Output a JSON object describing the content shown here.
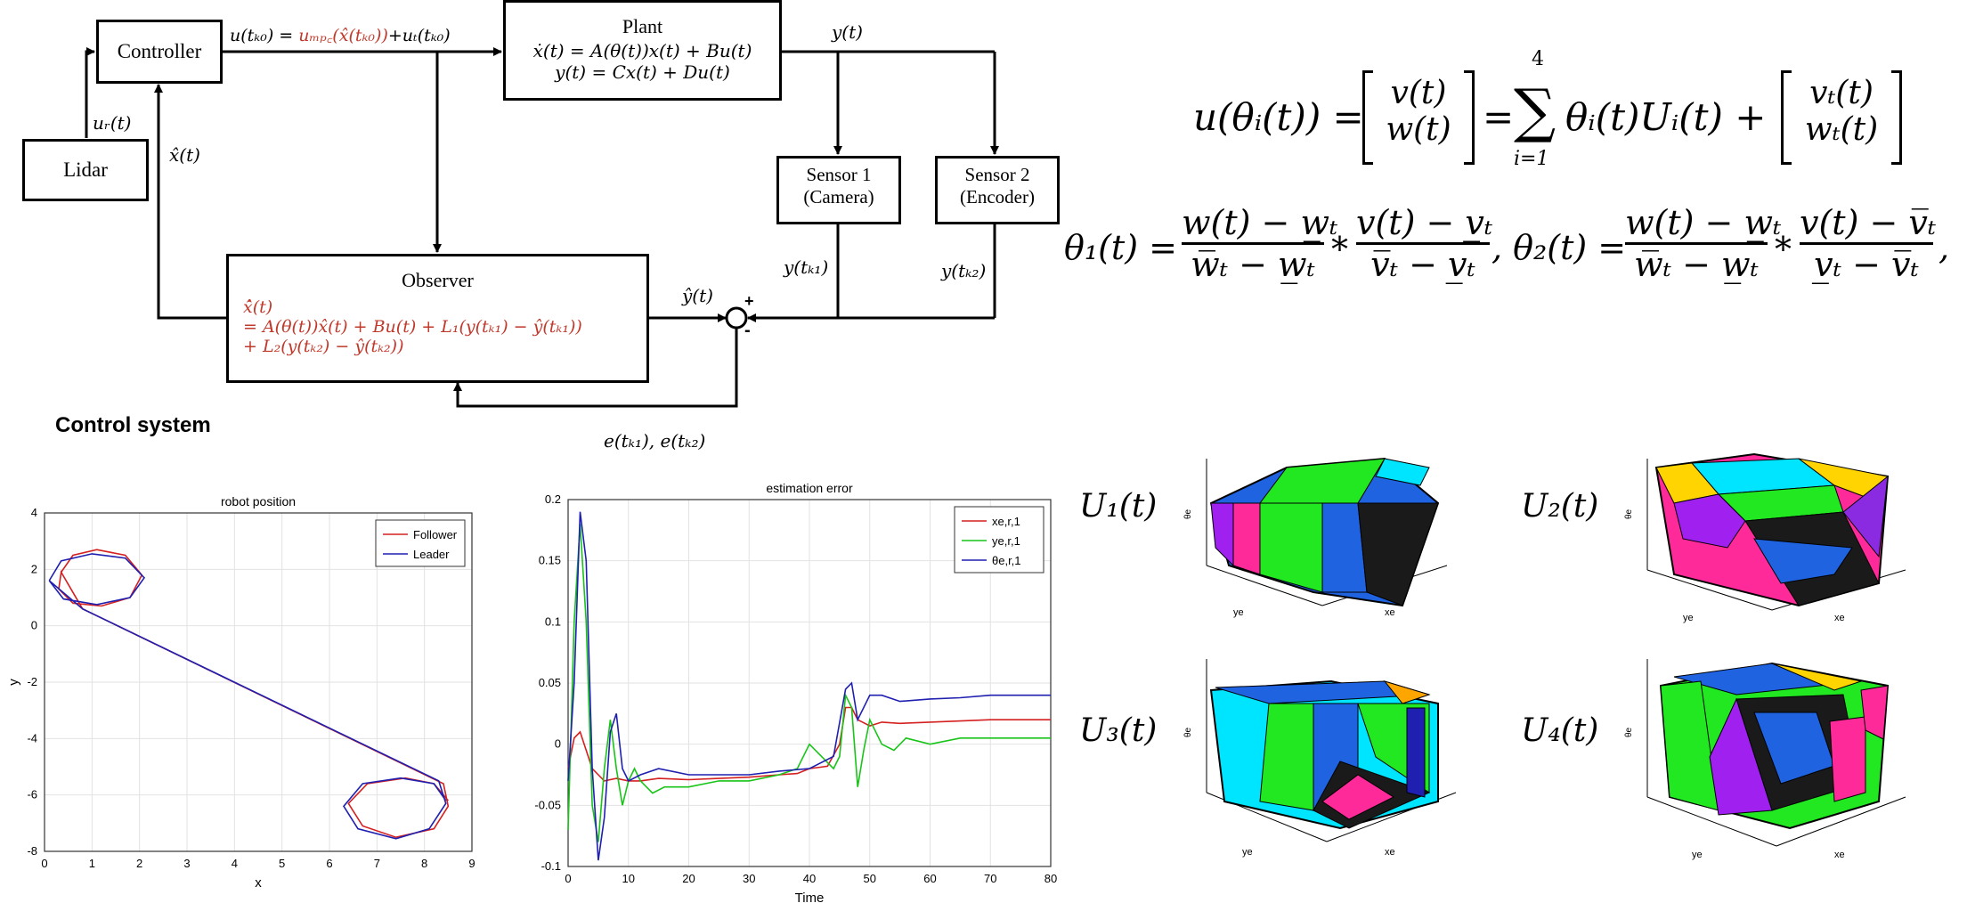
{
  "colors": {
    "red": "#d42020",
    "green": "#19c419",
    "blue": "#1f1fb0",
    "formula_red": "#c0392b"
  },
  "diagram": {
    "controller": "Controller",
    "lidar": "Lidar",
    "plant_title": "Plant",
    "plant_eq1": "ẋ(t) = A(θ(t))x(t) + Bu(t)",
    "plant_eq2": "y(t) = Cx(t) + Du(t)",
    "sensor1_l1": "Sensor 1",
    "sensor1_l2": "(Camera)",
    "sensor2_l1": "Sensor 2",
    "sensor2_l2": "(Encoder)",
    "observer_title": "Observer",
    "observer_eq1": "x̂̇(t)",
    "observer_eq2": "= A(θ(t))x̂(t) + Bu(t) + L₁(y(tₖ₁) − ŷ(tₖ₁))",
    "observer_eq3": "+ L₂(y(tₖ₂) − ŷ(tₖ₂))",
    "u_label_a": "u(tₖ₀) = ",
    "u_label_b": "uₘₚ꜀(x̂(tₖ₀))",
    "u_label_c": "+uₜ(tₖ₀)",
    "ur_label": "uᵣ(t)",
    "xhat_label": "x̂(t)",
    "y_label": "y(t)",
    "yhat_label": "ŷ(t)",
    "ytk1_label": "y(tₖ₁)",
    "ytk2_label": "y(tₖ₂)",
    "plus": "+",
    "minus": "-",
    "error_label": "e(tₖ₁), e(tₖ₂)",
    "caption": "Control system"
  },
  "equations": {
    "u_lhs": "u(θᵢ(t)) =",
    "v": "v(t)",
    "w": "w(t)",
    "eq": "=",
    "sum": "∑",
    "sum_top": "4",
    "sum_bottom": "i=1",
    "sum_body": "θᵢ(t)Uᵢ(t) +",
    "vt": "vₜ(t)",
    "wt": "wₜ(t)",
    "theta1_lhs": "θ₁(t) =",
    "t1_num1": "w(t) − w̲ₜ",
    "t1_den1": "w̅ₜ − w̲ₜ",
    "star": "*",
    "t1_num2": "v(t) − v̲ₜ",
    "t1_den2": "v̅ₜ − v̲ₜ",
    "theta2_lhs": ", θ₂(t) =",
    "t2_num1": "w(t) − w̲ₜ",
    "t2_den1": "w̅ₜ − w̲ₜ",
    "t2_num2": "v(t) − v̅ₜ",
    "t2_den2": "v̲ₜ − v̅ₜ",
    "comma": ","
  },
  "u_plots": {
    "labels": [
      "U₁(t)",
      "U₂(t)",
      "U₃(t)",
      "U₄(t)"
    ],
    "axis_xe": "xe",
    "axis_ye": "ye",
    "axis_the": "θe"
  },
  "chart_data": [
    {
      "type": "line",
      "title": "robot position",
      "xlabel": "x",
      "ylabel": "y",
      "xlim": [
        0,
        9
      ],
      "ylim": [
        -8,
        4
      ],
      "xticks": [
        0,
        1,
        2,
        3,
        4,
        5,
        6,
        7,
        8,
        9
      ],
      "yticks": [
        -8,
        -6,
        -4,
        -2,
        0,
        2,
        4
      ],
      "grid": true,
      "legend_position": "top-right",
      "series": [
        {
          "name": "Follower",
          "color": "#d42020",
          "description_points": [
            [
              0.35,
              1.9
            ],
            [
              0.6,
              2.5
            ],
            [
              1.1,
              2.7
            ],
            [
              1.7,
              2.5
            ],
            [
              2.05,
              1.8
            ],
            [
              1.8,
              1.0
            ],
            [
              1.2,
              0.7
            ],
            [
              0.6,
              0.8
            ],
            [
              0.3,
              1.3
            ],
            [
              0.35,
              1.9
            ],
            [
              0.8,
              0.6
            ],
            [
              8.4,
              -5.6
            ],
            [
              8.5,
              -6.4
            ],
            [
              8.2,
              -7.2
            ],
            [
              7.4,
              -7.5
            ],
            [
              6.7,
              -7.1
            ],
            [
              6.4,
              -6.3
            ],
            [
              6.8,
              -5.6
            ],
            [
              7.6,
              -5.4
            ],
            [
              8.2,
              -5.6
            ],
            [
              8.5,
              -6.2
            ]
          ]
        },
        {
          "name": "Leader",
          "color": "#1f1fb0",
          "description_points": [
            [
              0.1,
              1.6
            ],
            [
              0.35,
              2.3
            ],
            [
              1.0,
              2.55
            ],
            [
              1.7,
              2.4
            ],
            [
              2.1,
              1.7
            ],
            [
              1.8,
              1.0
            ],
            [
              1.1,
              0.75
            ],
            [
              0.4,
              0.95
            ],
            [
              0.1,
              1.6
            ],
            [
              0.8,
              0.6
            ],
            [
              8.3,
              -5.5
            ],
            [
              8.45,
              -6.3
            ],
            [
              8.1,
              -7.2
            ],
            [
              7.4,
              -7.55
            ],
            [
              6.6,
              -7.2
            ],
            [
              6.3,
              -6.4
            ],
            [
              6.7,
              -5.6
            ],
            [
              7.5,
              -5.4
            ],
            [
              8.2,
              -5.6
            ],
            [
              8.45,
              -6.2
            ]
          ]
        }
      ]
    },
    {
      "type": "line",
      "title": "estimation error",
      "xlabel": "Time",
      "ylabel": "",
      "xlim": [
        0,
        80
      ],
      "ylim": [
        -0.1,
        0.2
      ],
      "xticks": [
        0,
        10,
        20,
        30,
        40,
        50,
        60,
        70,
        80
      ],
      "yticks": [
        -0.1,
        -0.05,
        0,
        0.05,
        0.1,
        0.15,
        0.2
      ],
      "grid": true,
      "legend_position": "top-right",
      "series": [
        {
          "name": "xe,r,1",
          "color": "#d42020",
          "x": [
            0,
            1,
            2,
            3,
            4,
            5,
            6,
            8,
            10,
            12,
            15,
            20,
            25,
            30,
            35,
            38,
            40,
            43,
            45,
            46,
            47,
            48,
            50,
            52,
            55,
            60,
            65,
            70,
            75,
            80
          ],
          "y": [
            -0.02,
            0.005,
            0.01,
            -0.005,
            -0.02,
            -0.025,
            -0.03,
            -0.028,
            -0.03,
            -0.03,
            -0.028,
            -0.029,
            -0.028,
            -0.027,
            -0.025,
            -0.024,
            -0.02,
            -0.018,
            0,
            0.03,
            0.03,
            0.02,
            0.015,
            0.018,
            0.017,
            0.018,
            0.019,
            0.02,
            0.02,
            0.02
          ]
        },
        {
          "name": "ye,r,1",
          "color": "#19c419",
          "x": [
            0,
            1,
            2,
            3,
            4,
            5,
            6,
            7,
            8,
            9,
            10,
            11,
            12,
            14,
            16,
            20,
            25,
            30,
            35,
            38,
            40,
            42,
            44,
            45,
            46,
            47,
            48,
            49,
            50,
            52,
            54,
            56,
            60,
            65,
            70,
            75,
            80
          ],
          "y": [
            -0.07,
            0.1,
            0.18,
            0.1,
            -0.05,
            -0.08,
            -0.02,
            0.02,
            -0.02,
            -0.05,
            -0.03,
            -0.02,
            -0.03,
            -0.04,
            -0.035,
            -0.035,
            -0.03,
            -0.03,
            -0.025,
            -0.02,
            0.0,
            -0.01,
            -0.02,
            -0.01,
            0.04,
            0.03,
            -0.035,
            -0.005,
            0.02,
            0.0,
            -0.005,
            0.005,
            0.0,
            0.005,
            0.005,
            0.005,
            0.005
          ]
        },
        {
          "name": "θe,r,1",
          "color": "#1f1fb0",
          "x": [
            0,
            1,
            2,
            3,
            4,
            5,
            6,
            7,
            8,
            9,
            10,
            12,
            15,
            20,
            25,
            30,
            35,
            40,
            44,
            46,
            47,
            48,
            50,
            52,
            55,
            60,
            65,
            70,
            75,
            80
          ],
          "y": [
            -0.03,
            0.05,
            0.19,
            0.15,
            -0.02,
            -0.095,
            -0.06,
            0.01,
            0.025,
            -0.02,
            -0.03,
            -0.025,
            -0.02,
            -0.025,
            -0.025,
            -0.025,
            -0.022,
            -0.02,
            -0.01,
            0.045,
            0.05,
            0.02,
            0.04,
            0.04,
            0.035,
            0.037,
            0.038,
            0.04,
            0.04,
            0.04
          ]
        }
      ]
    }
  ]
}
